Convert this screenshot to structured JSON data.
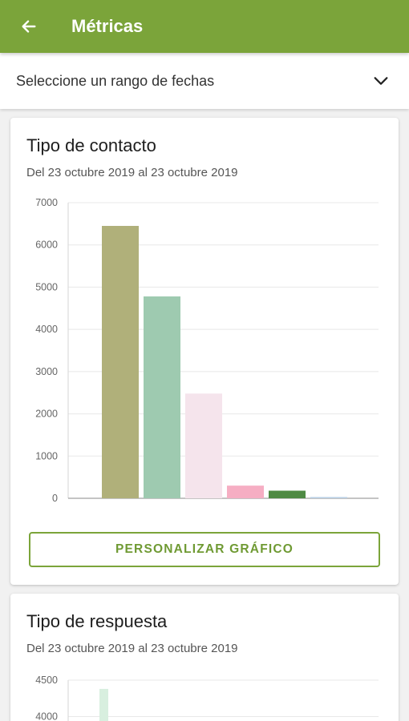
{
  "appbar": {
    "title": "Métricas",
    "back_icon": "arrow-left-icon"
  },
  "date_range": {
    "label": "Seleccione un rango de fechas",
    "icon": "chevron-down-icon"
  },
  "cards": [
    {
      "title": "Tipo de contacto",
      "subtitle": "Del 23 octubre 2019 al 23 octubre 2019",
      "button_label": "PERSONALIZAR GRÁFICO"
    },
    {
      "title": "Tipo de respuesta",
      "subtitle": "Del 23 octubre 2019 al 23 octubre 2019"
    }
  ],
  "colors": {
    "primary": "#7ba43a",
    "accent_text": "#6f9a33"
  },
  "chart_data": [
    {
      "type": "bar",
      "ylim": [
        0,
        7000
      ],
      "yticks": [
        "0",
        "1000",
        "2000",
        "3000",
        "4000",
        "5000",
        "6000",
        "7000"
      ],
      "values": [
        6450,
        4780,
        2480,
        300,
        180,
        30
      ],
      "colors": [
        "#b0b07a",
        "#9ecab0",
        "#f5e4ec",
        "#f6aec3",
        "#4f8a43",
        "#b9cfe4"
      ],
      "grid": true
    },
    {
      "type": "bar",
      "ylim": [
        0,
        4500
      ],
      "yticks": [
        "4000",
        "4500"
      ],
      "values": [
        4380
      ],
      "colors": [
        "#d8efdf"
      ],
      "grid": true,
      "partially_visible": true
    }
  ]
}
